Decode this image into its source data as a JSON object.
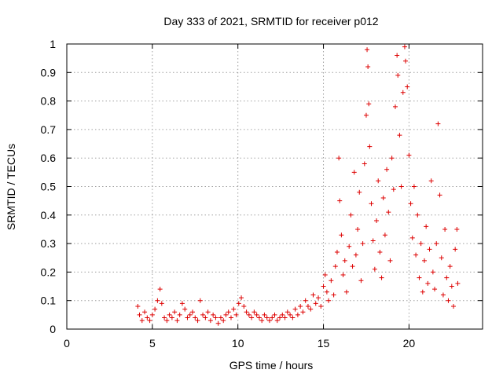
{
  "chart_data": {
    "type": "scatter",
    "title": "Day 333 of 2021, SRMTID for receiver p012",
    "xlabel": "GPS time / hours",
    "ylabel": "SRMTID / TECUs",
    "xlim": [
      0,
      24.3
    ],
    "ylim": [
      0,
      1
    ],
    "xticks": [
      0,
      5,
      10,
      15,
      20
    ],
    "xtick_labels": [
      "0",
      "5",
      "10",
      "15",
      "20"
    ],
    "yticks": [
      0,
      0.1,
      0.2,
      0.3,
      0.4,
      0.5,
      0.6,
      0.7,
      0.8,
      0.9,
      1
    ],
    "ytick_labels": [
      "0",
      "0.1",
      "0.2",
      "0.3",
      "0.4",
      "0.5",
      "0.6",
      "0.7",
      "0.8",
      "0.9",
      "1"
    ],
    "grid": true,
    "marker": "+",
    "color": "#dd0000",
    "series": [
      {
        "name": "SRMTID",
        "points": [
          [
            4.15,
            0.08
          ],
          [
            4.25,
            0.05
          ],
          [
            4.4,
            0.03
          ],
          [
            4.55,
            0.06
          ],
          [
            4.7,
            0.04
          ],
          [
            4.85,
            0.03
          ],
          [
            5.0,
            0.05
          ],
          [
            5.15,
            0.07
          ],
          [
            5.3,
            0.1
          ],
          [
            5.45,
            0.14
          ],
          [
            5.55,
            0.09
          ],
          [
            5.7,
            0.04
          ],
          [
            5.85,
            0.03
          ],
          [
            6.0,
            0.05
          ],
          [
            6.15,
            0.04
          ],
          [
            6.3,
            0.06
          ],
          [
            6.45,
            0.03
          ],
          [
            6.6,
            0.05
          ],
          [
            6.75,
            0.09
          ],
          [
            6.9,
            0.07
          ],
          [
            7.05,
            0.04
          ],
          [
            7.2,
            0.05
          ],
          [
            7.35,
            0.06
          ],
          [
            7.5,
            0.04
          ],
          [
            7.65,
            0.03
          ],
          [
            7.8,
            0.1
          ],
          [
            7.95,
            0.05
          ],
          [
            8.1,
            0.04
          ],
          [
            8.25,
            0.06
          ],
          [
            8.4,
            0.03
          ],
          [
            8.55,
            0.05
          ],
          [
            8.7,
            0.04
          ],
          [
            8.85,
            0.02
          ],
          [
            9.0,
            0.04
          ],
          [
            9.15,
            0.03
          ],
          [
            9.3,
            0.05
          ],
          [
            9.45,
            0.06
          ],
          [
            9.6,
            0.04
          ],
          [
            9.75,
            0.07
          ],
          [
            9.9,
            0.05
          ],
          [
            10.05,
            0.09
          ],
          [
            10.2,
            0.11
          ],
          [
            10.35,
            0.08
          ],
          [
            10.5,
            0.06
          ],
          [
            10.65,
            0.05
          ],
          [
            10.8,
            0.04
          ],
          [
            10.95,
            0.06
          ],
          [
            11.1,
            0.05
          ],
          [
            11.25,
            0.04
          ],
          [
            11.4,
            0.03
          ],
          [
            11.55,
            0.05
          ],
          [
            11.7,
            0.04
          ],
          [
            11.85,
            0.03
          ],
          [
            12.0,
            0.04
          ],
          [
            12.15,
            0.05
          ],
          [
            12.3,
            0.03
          ],
          [
            12.45,
            0.04
          ],
          [
            12.6,
            0.05
          ],
          [
            12.75,
            0.04
          ],
          [
            12.9,
            0.06
          ],
          [
            13.05,
            0.05
          ],
          [
            13.2,
            0.04
          ],
          [
            13.35,
            0.07
          ],
          [
            13.5,
            0.05
          ],
          [
            13.65,
            0.08
          ],
          [
            13.8,
            0.06
          ],
          [
            13.95,
            0.1
          ],
          [
            14.1,
            0.08
          ],
          [
            14.25,
            0.07
          ],
          [
            14.4,
            0.12
          ],
          [
            14.55,
            0.09
          ],
          [
            14.7,
            0.11
          ],
          [
            14.85,
            0.08
          ],
          [
            15.0,
            0.15
          ],
          [
            15.1,
            0.19
          ],
          [
            15.2,
            0.13
          ],
          [
            15.3,
            0.1
          ],
          [
            15.45,
            0.17
          ],
          [
            15.6,
            0.12
          ],
          [
            15.7,
            0.22
          ],
          [
            15.8,
            0.27
          ],
          [
            15.9,
            0.6
          ],
          [
            15.95,
            0.45
          ],
          [
            16.05,
            0.33
          ],
          [
            16.15,
            0.19
          ],
          [
            16.25,
            0.24
          ],
          [
            16.35,
            0.13
          ],
          [
            16.5,
            0.29
          ],
          [
            16.6,
            0.4
          ],
          [
            16.7,
            0.22
          ],
          [
            16.8,
            0.55
          ],
          [
            16.9,
            0.26
          ],
          [
            17.0,
            0.35
          ],
          [
            17.1,
            0.48
          ],
          [
            17.2,
            0.17
          ],
          [
            17.3,
            0.3
          ],
          [
            17.4,
            0.58
          ],
          [
            17.5,
            0.75
          ],
          [
            17.55,
            0.98
          ],
          [
            17.6,
            0.92
          ],
          [
            17.65,
            0.79
          ],
          [
            17.7,
            0.64
          ],
          [
            17.8,
            0.44
          ],
          [
            17.9,
            0.31
          ],
          [
            18.0,
            0.21
          ],
          [
            18.1,
            0.38
          ],
          [
            18.2,
            0.52
          ],
          [
            18.3,
            0.27
          ],
          [
            18.4,
            0.18
          ],
          [
            18.5,
            0.46
          ],
          [
            18.6,
            0.33
          ],
          [
            18.7,
            0.56
          ],
          [
            18.8,
            0.41
          ],
          [
            18.9,
            0.24
          ],
          [
            19.0,
            0.6
          ],
          [
            19.1,
            0.49
          ],
          [
            19.2,
            0.78
          ],
          [
            19.3,
            0.96
          ],
          [
            19.35,
            0.89
          ],
          [
            19.45,
            0.68
          ],
          [
            19.55,
            0.5
          ],
          [
            19.65,
            0.83
          ],
          [
            19.75,
            0.99
          ],
          [
            19.8,
            0.94
          ],
          [
            19.9,
            0.85
          ],
          [
            20.0,
            0.61
          ],
          [
            20.1,
            0.44
          ],
          [
            20.2,
            0.32
          ],
          [
            20.3,
            0.5
          ],
          [
            20.4,
            0.26
          ],
          [
            20.5,
            0.4
          ],
          [
            20.6,
            0.18
          ],
          [
            20.7,
            0.3
          ],
          [
            20.8,
            0.13
          ],
          [
            20.9,
            0.24
          ],
          [
            21.0,
            0.36
          ],
          [
            21.1,
            0.16
          ],
          [
            21.2,
            0.28
          ],
          [
            21.3,
            0.52
          ],
          [
            21.4,
            0.2
          ],
          [
            21.5,
            0.14
          ],
          [
            21.6,
            0.3
          ],
          [
            21.7,
            0.72
          ],
          [
            21.8,
            0.47
          ],
          [
            21.9,
            0.25
          ],
          [
            22.0,
            0.12
          ],
          [
            22.1,
            0.35
          ],
          [
            22.2,
            0.18
          ],
          [
            22.3,
            0.1
          ],
          [
            22.4,
            0.22
          ],
          [
            22.5,
            0.15
          ],
          [
            22.6,
            0.08
          ],
          [
            22.7,
            0.28
          ],
          [
            22.8,
            0.35
          ],
          [
            22.85,
            0.16
          ]
        ]
      }
    ]
  }
}
